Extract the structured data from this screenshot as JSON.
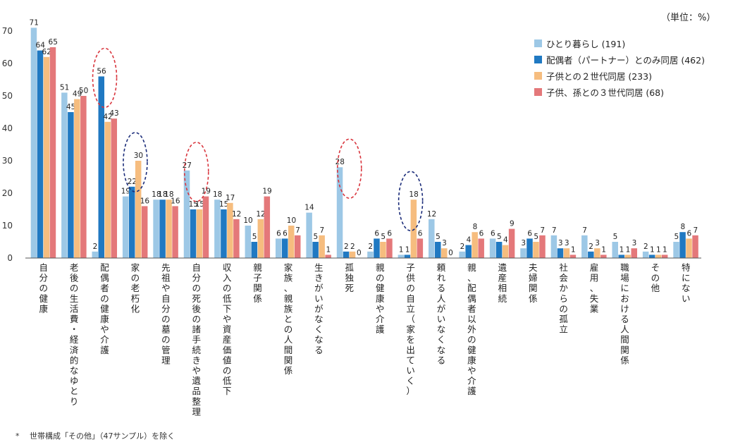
{
  "unit_label": "（単位：%）",
  "footnote": "*　 世帯構成「その他」（47サンプル）を除く",
  "colors": {
    "series": [
      "#9dc8e6",
      "#2079c2",
      "#f6bd7f",
      "#e4787a"
    ],
    "axis": "#555555",
    "highlight_red": "#d9363e",
    "highlight_navy": "#1c2d7a"
  },
  "chart_data": {
    "type": "bar",
    "title": "",
    "xlabel": "",
    "ylabel": "",
    "ylim": [
      0,
      70
    ],
    "yticks": [
      0,
      10,
      20,
      30,
      40,
      50,
      60,
      70
    ],
    "grid": false,
    "legend_position": "top-right",
    "categories": [
      "自分の健康",
      "老後の生活費・経済的なゆとり",
      "配偶者の健康や介護",
      "家の老朽化",
      "先祖や自分の墓の管理",
      "自分の死後の諸手続きや遺品整理",
      "収入の低下や資産価値の低下",
      "親子関係",
      "家族、親族との人間関係",
      "生きがいがなくなる",
      "孤独死",
      "親の健康や介護",
      "子供の自立（家を出ていく）",
      "頼れる人がいなくなる",
      "親、配偶者以外の健康や介護",
      "遺産相続",
      "夫婦関係",
      "社会からの孤立",
      "雇用、失業",
      "職場における人間関係",
      "その他",
      "特にない"
    ],
    "series": [
      {
        "name": "ひとり暮らし (191)",
        "values": [
          71,
          51,
          2,
          19,
          18,
          27,
          18,
          10,
          6,
          14,
          28,
          2,
          1,
          12,
          2,
          6,
          3,
          7,
          7,
          5,
          2,
          5
        ]
      },
      {
        "name": "配偶者（パートナー）とのみ同居 (462)",
        "values": [
          64,
          45,
          56,
          22,
          18,
          15,
          15,
          5,
          6,
          5,
          2,
          6,
          1,
          5,
          4,
          5,
          6,
          3,
          2,
          1,
          1,
          8
        ]
      },
      {
        "name": "子供との２世代同居 (233)",
        "values": [
          62,
          49,
          42,
          30,
          18,
          15,
          17,
          12,
          10,
          7,
          2,
          5,
          18,
          3,
          8,
          4,
          5,
          3,
          3,
          1,
          1,
          6
        ]
      },
      {
        "name": "子供、孫との３世代同居 (68)",
        "values": [
          65,
          50,
          43,
          16,
          16,
          19,
          12,
          19,
          7,
          1,
          0,
          6,
          6,
          0,
          6,
          9,
          7,
          1,
          1,
          3,
          1,
          7
        ]
      }
    ],
    "highlights": [
      {
        "category": "配偶者の健康や介護",
        "series": "配偶者（パートナー）とのみ同居 (462)",
        "style": "red-dashed"
      },
      {
        "category": "家の老朽化",
        "series": "子供との２世代同居 (233)",
        "style": "navy-dashed"
      },
      {
        "category": "自分の死後の諸手続きや遺品整理",
        "series": "ひとり暮らし (191)",
        "style": "red-dashed"
      },
      {
        "category": "孤独死",
        "series": "ひとり暮らし (191)",
        "style": "red-dashed"
      },
      {
        "category": "子供の自立（家を出ていく）",
        "series": "子供との２世代同居 (233)",
        "style": "navy-dashed"
      }
    ]
  }
}
